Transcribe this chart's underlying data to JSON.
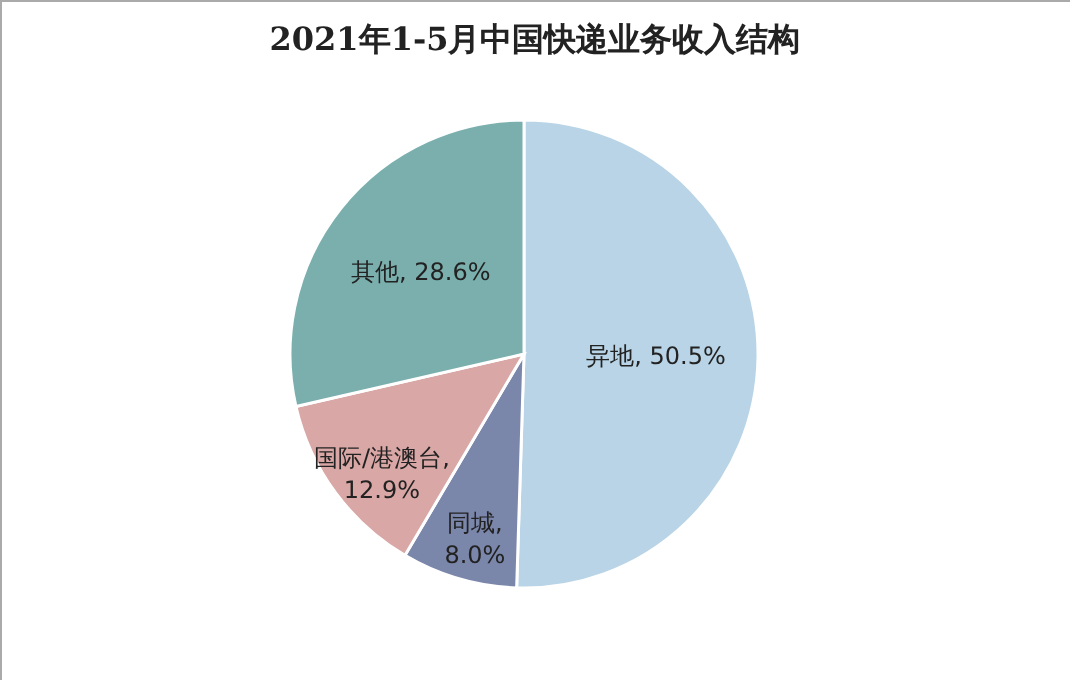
{
  "chart_data": {
    "type": "pie",
    "title": "2021年1-5月中国快递业务收入结构",
    "categories": [
      "异地",
      "同城",
      "国际/港澳台",
      "其他"
    ],
    "values": [
      50.5,
      8.0,
      12.9,
      28.6
    ],
    "colors": [
      "#b8d4e6",
      "#7a86aa",
      "#d9a7a5",
      "#7aafad"
    ],
    "value_labels": [
      ", 50.5%",
      ", 8.0%",
      ", 12.9%",
      ", 28.6%"
    ],
    "legend": false
  }
}
